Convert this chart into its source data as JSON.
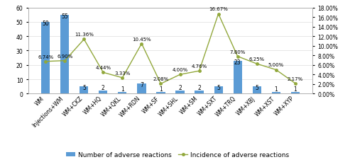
{
  "categories": [
    "WM",
    "Injections+WM",
    "WM+CKZ",
    "WM+HQ",
    "WM+QKL",
    "WM+RDN",
    "WM+SF",
    "WM+SHL",
    "WM+SM",
    "WM+SXT",
    "WM+TRQ",
    "WM+XBJ",
    "WM+XST",
    "WM+XYP"
  ],
  "bar_values": [
    50,
    55,
    5,
    2,
    1,
    7,
    1,
    2,
    2,
    5,
    23,
    5,
    1,
    1
  ],
  "line_values": [
    6.74,
    6.9,
    11.36,
    4.44,
    3.33,
    10.45,
    2.08,
    4.0,
    4.76,
    16.67,
    7.8,
    6.25,
    5.0,
    2.17
  ],
  "bar_labels": [
    "50",
    "55",
    "5",
    "2",
    "1",
    "7",
    "1",
    "2",
    "2",
    "5",
    "23",
    "5",
    "1",
    "1"
  ],
  "line_labels": [
    "6.74%",
    "6.90%",
    "11.36%",
    "4.44%",
    "3.33%",
    "10.45%",
    "2.08%",
    "4.00%",
    "4.76%",
    "16.67%",
    "7.80%",
    "6.25%",
    "5.00%",
    "2.17%"
  ],
  "bar_color": "#5B9BD5",
  "line_color": "#92A83C",
  "ylim_left": [
    0,
    60
  ],
  "ylim_right": [
    0,
    18
  ],
  "yticks_left": [
    0,
    10,
    20,
    30,
    40,
    50,
    60
  ],
  "yticks_right": [
    0,
    2,
    4,
    6,
    8,
    10,
    12,
    14,
    16,
    18
  ],
  "legend_bar": "Number of adverse reactions",
  "legend_line": "Incidence of adverse reactions",
  "bg_color": "#ffffff",
  "font_size_label": 5.5,
  "font_size_tick": 5.5,
  "font_size_legend": 6.5
}
